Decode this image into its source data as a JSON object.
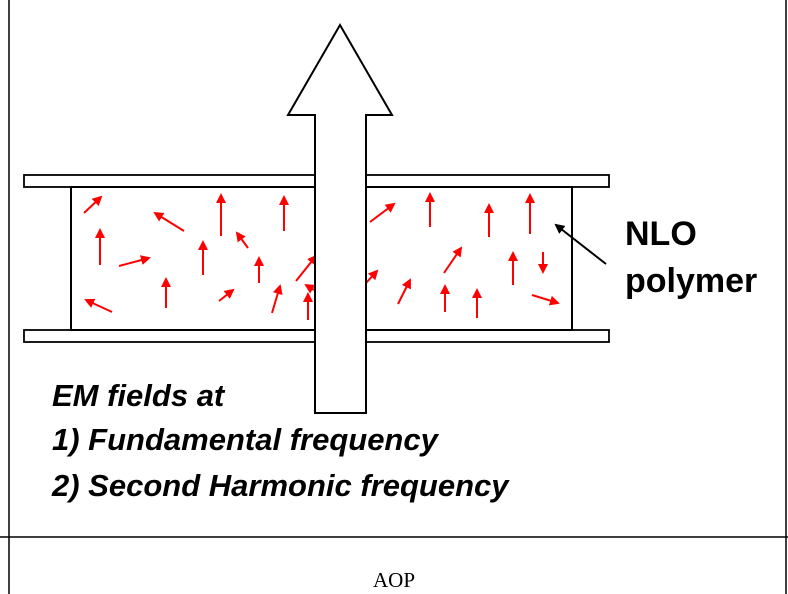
{
  "labels": {
    "material_line1": "NLO",
    "material_line2": "polymer"
  },
  "fields_text": {
    "heading": "EM fields at",
    "item1": "1)  Fundamental frequency",
    "item2": "2)  Second Harmonic frequency"
  },
  "caption": "AOP",
  "colors": {
    "dipole_arrows": "#ff0000",
    "outline": "#000000",
    "background": "#ffffff"
  },
  "icons": {
    "beam": "large-up-arrow-icon",
    "dipole": "small-red-arrow-icon"
  }
}
